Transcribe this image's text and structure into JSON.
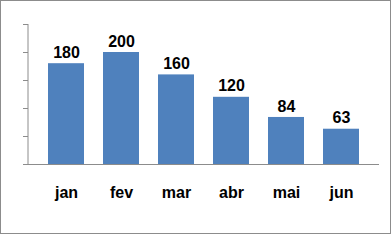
{
  "chart_data": {
    "type": "bar",
    "categories": [
      "jan",
      "fev",
      "mar",
      "abr",
      "mai",
      "jun"
    ],
    "values": [
      180,
      200,
      160,
      120,
      84,
      63
    ],
    "color": "#4f81bd",
    "ylim": [
      0,
      250
    ],
    "yticks": [
      0,
      50,
      100,
      150,
      200,
      250
    ],
    "data_labels": true,
    "tick_labels": "x",
    "grid": false
  }
}
